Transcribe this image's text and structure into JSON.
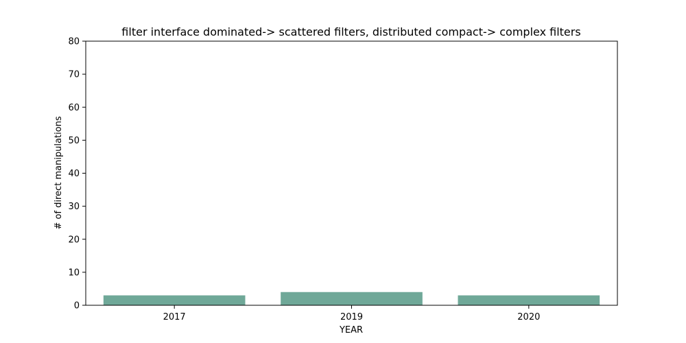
{
  "chart_data": {
    "type": "bar",
    "title": "filter interface dominated-> scattered filters, distributed compact-> complex filters",
    "xlabel": "YEAR",
    "ylabel": "# of direct manipulations",
    "categories": [
      "2017",
      "2019",
      "2020"
    ],
    "values": [
      3,
      4,
      3
    ],
    "ylim": [
      0,
      80
    ],
    "yticks": [
      0,
      10,
      20,
      30,
      40,
      50,
      60,
      70,
      80
    ],
    "bar_color": "#6fa898",
    "grid": false,
    "legend": "none"
  }
}
